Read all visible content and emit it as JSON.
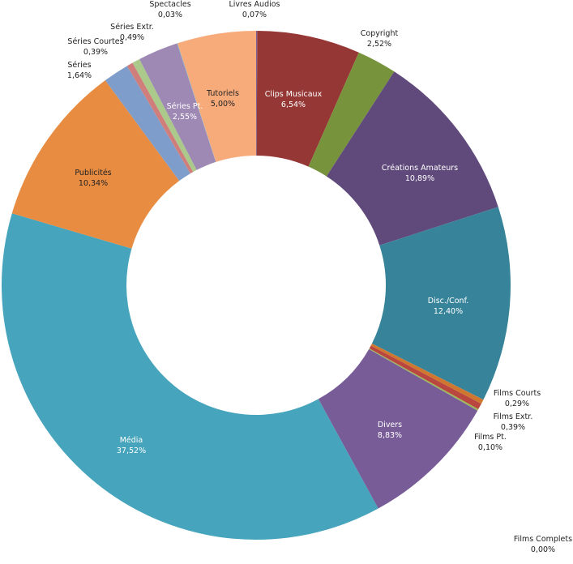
{
  "chart_data": {
    "type": "pie",
    "donut": true,
    "title": "",
    "start": "top, clockwise",
    "slices": [
      {
        "label": "Livres Audios",
        "value": 0.07,
        "text": "0,07%",
        "color": "#7b6290",
        "text_color": "#222222"
      },
      {
        "label": "Clips Musicaux",
        "value": 6.54,
        "text": "6,54%",
        "color": "#953735",
        "text_color": "#ffffff"
      },
      {
        "label": "Copyright",
        "value": 2.52,
        "text": "2,52%",
        "color": "#77933c",
        "text_color": "#222222"
      },
      {
        "label": "Créations Amateurs",
        "value": 10.89,
        "text": "10,89%",
        "color": "#604a7b",
        "text_color": "#ffffff"
      },
      {
        "label": "Disc./Conf.",
        "value": 12.4,
        "text": "12,40%",
        "color": "#37849a",
        "text_color": "#ffffff"
      },
      {
        "label": "Films Complets",
        "value": 0.0,
        "text": "0,00%",
        "color": "#4bacc6",
        "text_color": "#222222"
      },
      {
        "label": "Films Courts",
        "value": 0.29,
        "text": "0,29%",
        "color": "#d0772f",
        "text_color": "#222222"
      },
      {
        "label": "Films Extr.",
        "value": 0.39,
        "text": "0,39%",
        "color": "#b9473f",
        "text_color": "#222222"
      },
      {
        "label": "Films Pt.",
        "value": 0.1,
        "text": "0,10%",
        "color": "#9bbb59",
        "text_color": "#222222"
      },
      {
        "label": "Divers",
        "value": 8.83,
        "text": "8,83%",
        "color": "#785c98",
        "text_color": "#ffffff"
      },
      {
        "label": "Média",
        "value": 37.52,
        "text": "37,52%",
        "color": "#46a4bc",
        "text_color": "#ffffff"
      },
      {
        "label": "Publicités",
        "value": 10.34,
        "text": "10,34%",
        "color": "#e88c42",
        "text_color": "#222222"
      },
      {
        "label": "Séries",
        "value": 1.64,
        "text": "1,64%",
        "color": "#7e9dca",
        "text_color": "#222222"
      },
      {
        "label": "Séries Courtes",
        "value": 0.39,
        "text": "0,39%",
        "color": "#d07e7c",
        "text_color": "#222222"
      },
      {
        "label": "Séries Extr.",
        "value": 0.49,
        "text": "0,49%",
        "color": "#aac98a",
        "text_color": "#222222"
      },
      {
        "label": "Séries Pt.",
        "value": 2.55,
        "text": "2,55%",
        "color": "#9e89b5",
        "text_color": "#ffffff"
      },
      {
        "label": "Spectacles",
        "value": 0.03,
        "text": "0,03%",
        "color": "#6fb3c9",
        "text_color": "#222222"
      },
      {
        "label": "Tutoriels",
        "value": 5.0,
        "text": "5,00%",
        "color": "#f7aa7a",
        "text_color": "#222222"
      }
    ]
  }
}
